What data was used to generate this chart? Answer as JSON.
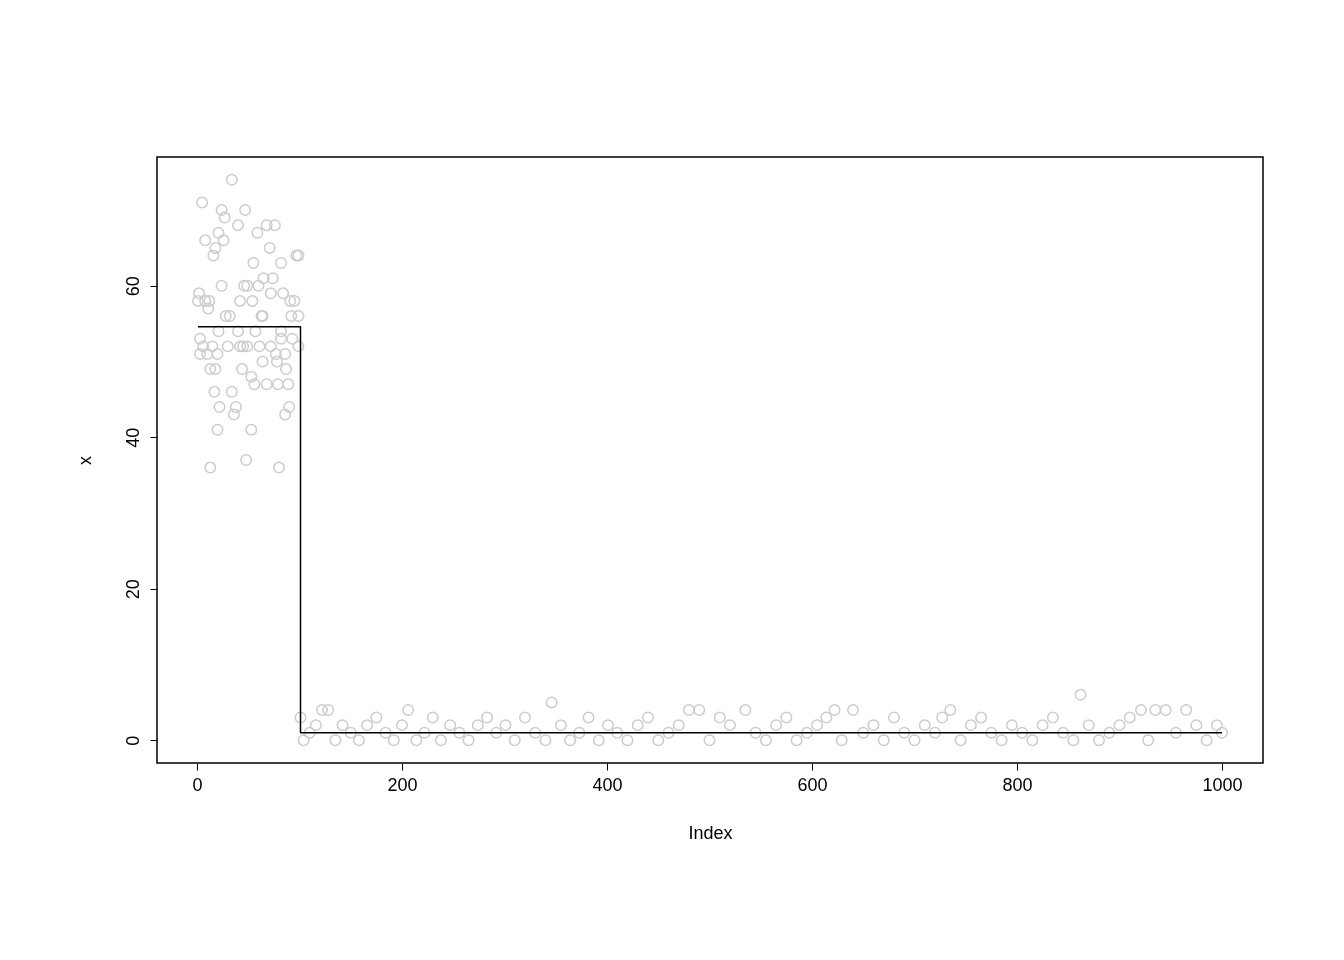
{
  "chart_data": {
    "type": "scatter",
    "xlabel": "Index",
    "ylabel": "x",
    "xlim": [
      -39,
      1040
    ],
    "ylim": [
      -3,
      77
    ],
    "xticks": [
      0,
      200,
      400,
      600,
      800,
      1000
    ],
    "yticks": [
      0,
      20,
      40,
      60
    ],
    "grid": false,
    "series": [
      {
        "marker": "circle",
        "color": "#cccccc",
        "x": [
          5,
          8,
          2,
          1,
          8,
          12,
          11,
          3,
          6,
          3,
          10,
          13,
          15,
          17,
          20,
          13,
          16,
          18,
          21,
          24,
          27,
          26,
          24,
          28,
          21,
          20,
          18,
          22,
          34,
          32,
          30,
          34,
          36,
          38,
          40,
          47,
          42,
          40,
          46,
          49,
          45,
          44,
          48,
          53,
          53,
          56,
          55,
          54,
          59,
          60,
          61,
          64,
          65,
          68,
          76,
          71,
          72,
          74,
          68,
          72,
          77,
          79,
          80,
          82,
          84,
          82,
          86,
          87,
          86,
          90,
          89,
          91,
          92,
          93,
          95,
          97,
          99,
          99,
          99,
          57,
          64,
          78,
          82,
          49,
          42,
          63,
          101,
          104,
          110,
          116,
          122,
          128,
          135,
          142,
          150,
          158,
          166,
          175,
          184,
          192,
          200,
          206,
          214,
          222,
          230,
          238,
          247,
          256,
          265,
          274,
          283,
          292,
          301,
          310,
          320,
          330,
          340,
          346,
          355,
          364,
          373,
          382,
          392,
          401,
          410,
          420,
          430,
          440,
          450,
          460,
          470,
          480,
          490,
          500,
          510,
          520,
          535,
          545,
          555,
          565,
          575,
          585,
          595,
          605,
          614,
          622,
          629,
          640,
          650,
          660,
          670,
          680,
          690,
          700,
          710,
          720,
          727,
          735,
          745,
          755,
          765,
          775,
          785,
          795,
          805,
          815,
          825,
          835,
          845,
          855,
          862,
          870,
          880,
          890,
          900,
          910,
          921,
          928,
          935,
          945,
          955,
          965,
          975,
          985,
          995,
          1000
        ],
        "values": [
          71,
          66,
          59,
          58,
          58,
          58,
          57,
          53,
          52,
          51,
          51,
          49,
          52,
          46,
          41,
          36,
          64,
          65,
          67,
          70,
          69,
          66,
          60,
          56,
          54,
          51,
          49,
          44,
          74,
          56,
          52,
          46,
          43,
          44,
          68,
          70,
          58,
          54,
          60,
          60,
          52,
          49,
          37,
          41,
          48,
          47,
          63,
          58,
          67,
          60,
          52,
          56,
          61,
          68,
          68,
          65,
          59,
          61,
          47,
          52,
          51,
          47,
          36,
          63,
          59,
          54,
          51,
          49,
          43,
          44,
          47,
          58,
          56,
          53,
          58,
          64,
          64,
          56,
          52,
          54,
          50,
          50,
          53,
          52,
          52,
          56,
          3,
          0,
          1,
          2,
          4,
          4,
          0,
          2,
          1,
          0,
          2,
          3,
          1,
          0,
          2,
          4,
          0,
          1,
          3,
          0,
          2,
          1,
          0,
          2,
          3,
          1,
          2,
          0,
          3,
          1,
          0,
          5,
          2,
          0,
          1,
          3,
          0,
          2,
          1,
          0,
          2,
          3,
          0,
          1,
          2,
          4,
          4,
          0,
          3,
          2,
          4,
          1,
          0,
          2,
          3,
          0,
          1,
          2,
          3,
          4,
          0,
          4,
          1,
          2,
          0,
          3,
          1,
          0,
          2,
          1,
          3,
          4,
          0,
          2,
          3,
          1,
          0,
          2,
          1,
          0,
          2,
          3,
          1,
          0,
          6,
          2,
          0,
          1,
          2,
          3,
          4,
          0,
          4,
          4,
          1,
          4,
          2,
          0,
          2,
          1
        ]
      },
      {
        "type": "step",
        "color": "#000000",
        "x": [
          1,
          101,
          1000
        ],
        "values": [
          54.6,
          1,
          1
        ]
      }
    ]
  }
}
